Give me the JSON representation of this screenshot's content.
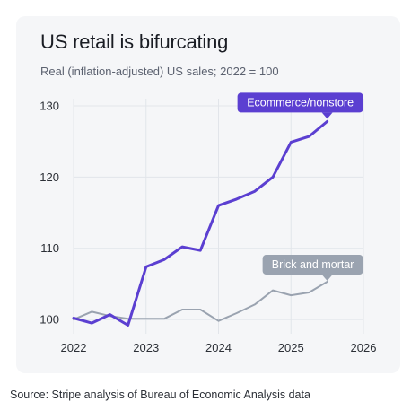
{
  "title": "US retail is bifurcating",
  "subtitle": "Real (inflation-adjusted) US sales; 2022 = 100",
  "source": "Source: Stripe analysis of Bureau of Economic Analysis data",
  "chart_data": {
    "type": "line",
    "title": "US retail is bifurcating",
    "subtitle": "Real (inflation-adjusted) US sales; 2022 = 100",
    "xlabel": "",
    "ylabel": "",
    "xlim": [
      2022,
      2026
    ],
    "ylim": [
      98,
      131
    ],
    "x_ticks": [
      2022,
      2023,
      2024,
      2025,
      2026
    ],
    "y_ticks": [
      100,
      110,
      120,
      130
    ],
    "x_tick_labels": [
      "2022",
      "2023",
      "2024",
      "2025",
      "2026"
    ],
    "y_tick_labels": [
      "100",
      "110",
      "120",
      "130"
    ],
    "grid": true,
    "legend": "none",
    "series": [
      {
        "name": "Ecommerce/nonstore",
        "color": "#5b3fd1",
        "label_style": "callout",
        "x": [
          2022.0,
          2022.25,
          2022.5,
          2022.75,
          2023.0,
          2023.25,
          2023.5,
          2023.75,
          2024.0,
          2024.25,
          2024.5,
          2024.75,
          2025.0,
          2025.25,
          2025.5
        ],
        "y": [
          100.2,
          99.5,
          100.7,
          99.2,
          107.4,
          108.4,
          110.2,
          109.7,
          116.0,
          116.9,
          118.0,
          120.0,
          124.9,
          125.7,
          127.8
        ]
      },
      {
        "name": "Brick and mortar",
        "color": "#9aa3b0",
        "label_style": "callout",
        "x": [
          2022.0,
          2022.25,
          2022.5,
          2022.75,
          2023.0,
          2023.25,
          2023.5,
          2023.75,
          2024.0,
          2024.25,
          2024.5,
          2024.75,
          2025.0,
          2025.25,
          2025.5
        ],
        "y": [
          100.0,
          101.1,
          100.5,
          100.1,
          100.1,
          100.1,
          101.4,
          101.4,
          99.8,
          100.9,
          102.1,
          104.1,
          103.4,
          103.8,
          105.3
        ]
      }
    ]
  },
  "colors": {
    "card_background": "#f5f6f8",
    "grid": "#e2e5ea",
    "ecommerce": "#5b3fd1",
    "brick": "#9aa3b0"
  }
}
